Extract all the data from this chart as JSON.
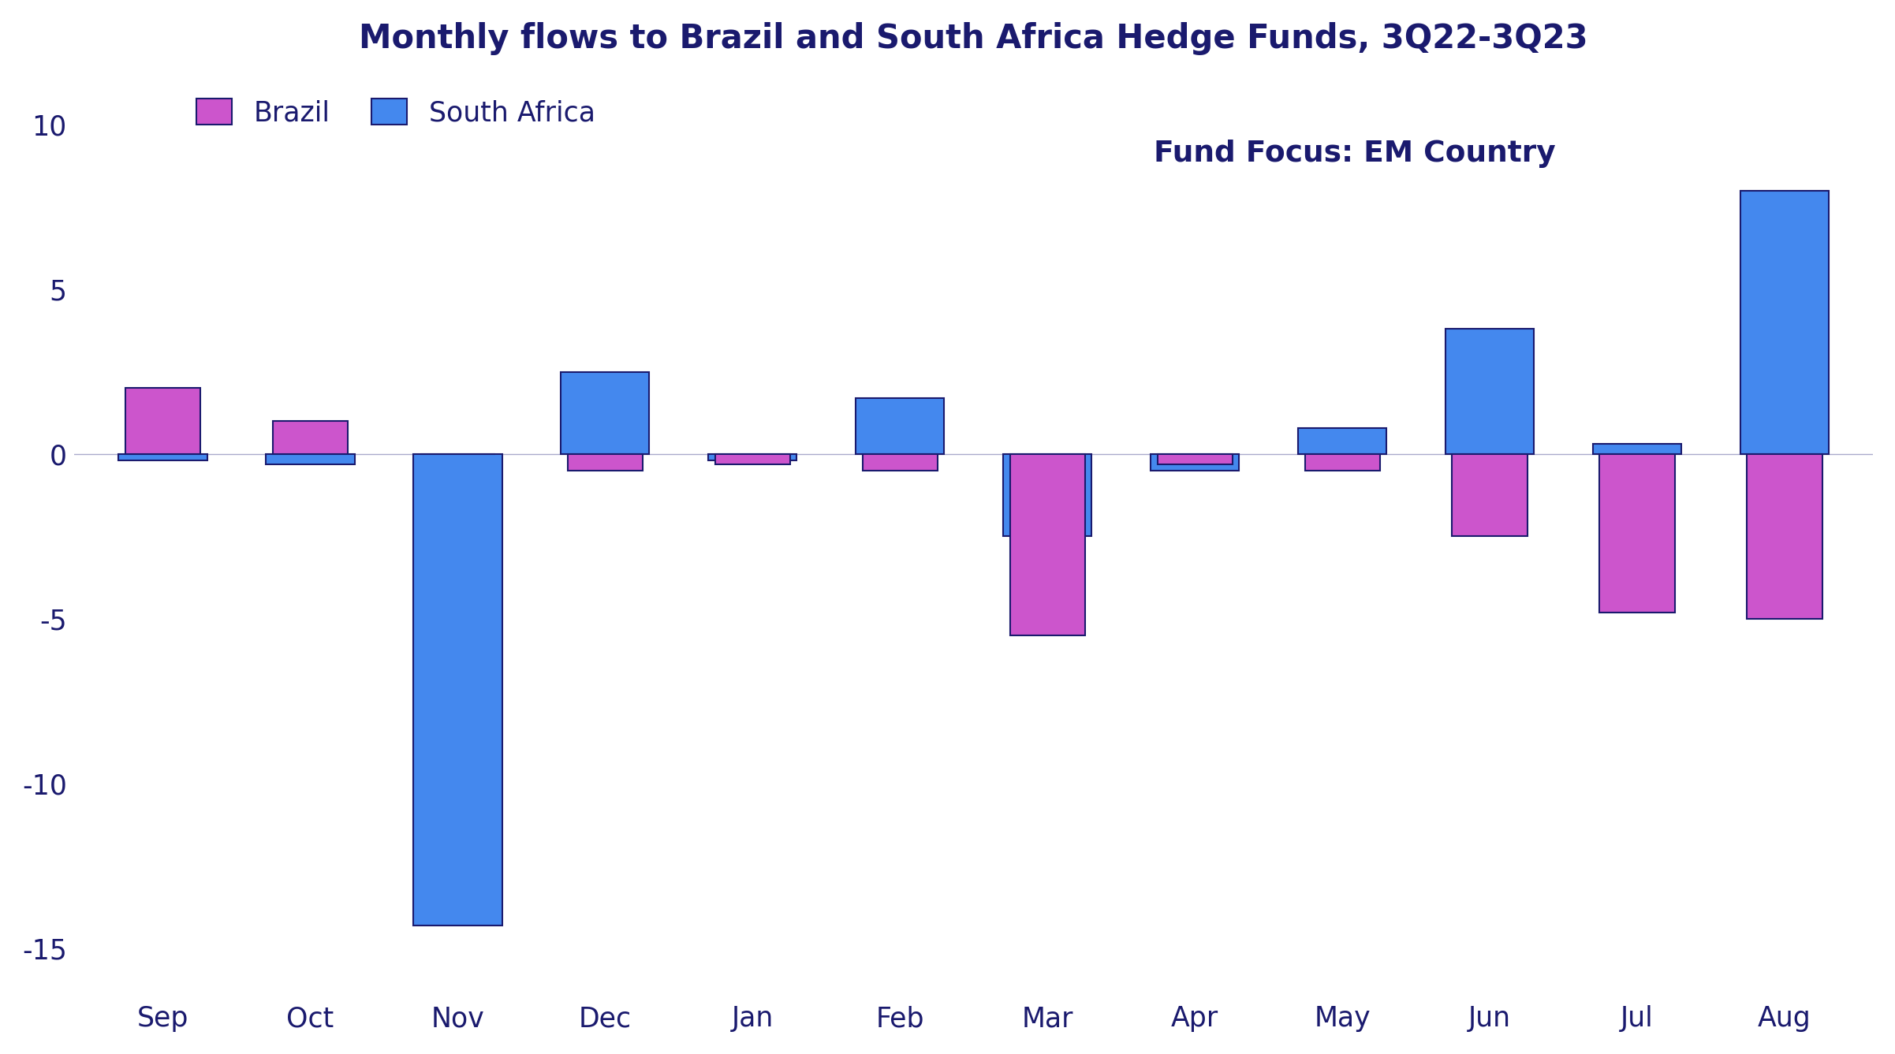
{
  "title": "Monthly flows to Brazil and South Africa Hedge Funds, 3Q22-3Q23",
  "subtitle": "Fund Focus: EM Country",
  "months": [
    "Sep",
    "Oct",
    "Nov",
    "Dec",
    "Jan",
    "Feb",
    "Mar",
    "Apr",
    "May",
    "Jun",
    "Jul",
    "Aug"
  ],
  "brazil": [
    2.0,
    1.0,
    0.0,
    -0.5,
    -0.3,
    -0.5,
    -5.5,
    -0.3,
    -0.5,
    -2.5,
    -4.8,
    -5.0
  ],
  "south_africa": [
    -0.2,
    -0.3,
    -14.3,
    2.5,
    -0.2,
    1.7,
    -2.5,
    -0.5,
    0.8,
    3.8,
    0.3,
    8.0
  ],
  "brazil_color": "#CC55CC",
  "south_africa_color": "#4488EE",
  "title_color": "#1a1a6e",
  "subtitle_color": "#1a1a6e",
  "tick_color": "#1a1a6e",
  "background_color": "#ffffff",
  "border_color": "#1a1a6e",
  "ylim": [
    -16.5,
    11.5
  ],
  "yticks": [
    -15,
    -10,
    -5,
    0,
    5,
    10
  ],
  "bar_width": 0.6,
  "title_fontsize": 30,
  "subtitle_fontsize": 27,
  "tick_fontsize": 25,
  "legend_fontsize": 25
}
